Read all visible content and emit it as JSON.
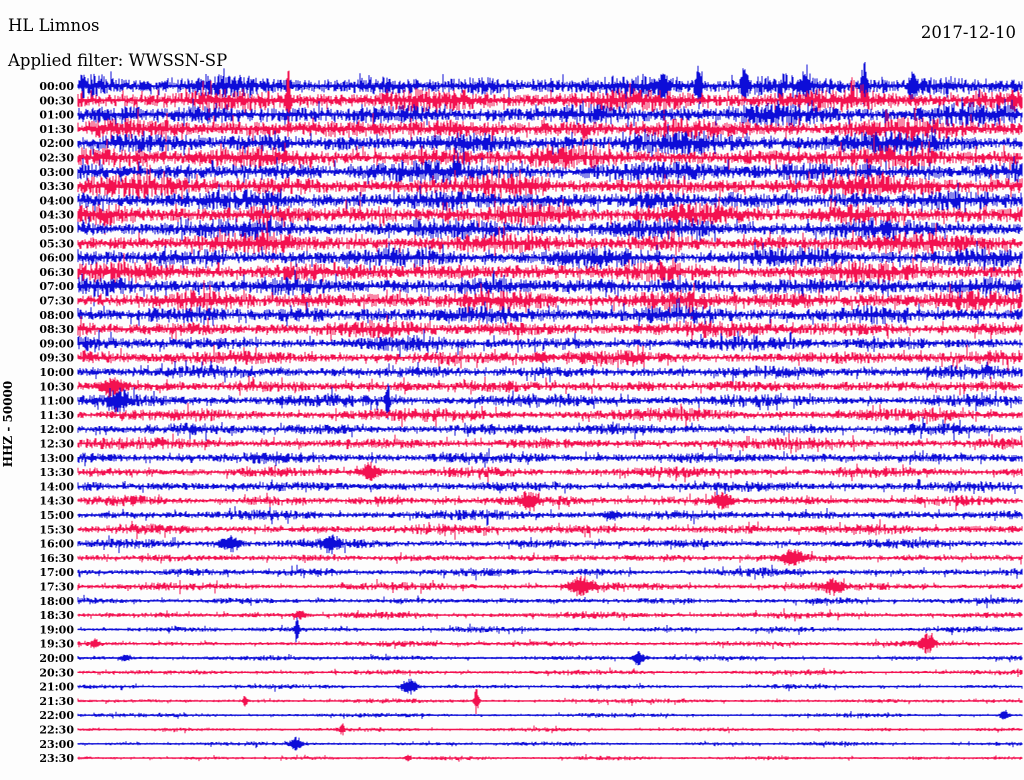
{
  "header": {
    "station": "HL Limnos",
    "date": "2017-12-10",
    "filter_label": "Applied filter: WWSSN-SP",
    "scale_label": "HHZ - 50000"
  },
  "colors": {
    "background": "#fdfdfd",
    "text": "#000000",
    "trace_blue": "#0d0dd8",
    "trace_red": "#f31150"
  },
  "chart_data": {
    "type": "helicorder-seismogram",
    "title": "HL Limnos",
    "date": "2017-12-10",
    "filter": "WWSSN-SP",
    "channel": "HHZ",
    "scale": 50000,
    "minutes_per_row": 30,
    "x_range_minutes": [
      0,
      30
    ],
    "legend_position": "none",
    "grid": false,
    "row_color_cycle": [
      "blue",
      "red"
    ],
    "rows": [
      {
        "time": "00:00",
        "color": "blue",
        "amp": 13,
        "events": [
          [
            0.62,
            14,
            3
          ],
          [
            0.658,
            26,
            2
          ],
          [
            0.706,
            22,
            2
          ],
          [
            0.77,
            10,
            3
          ],
          [
            0.833,
            26,
            2
          ],
          [
            0.885,
            12,
            3
          ]
        ]
      },
      {
        "time": "00:30",
        "color": "red",
        "amp": 13,
        "events": [
          [
            0.223,
            40,
            1.2
          ]
        ]
      },
      {
        "time": "01:00",
        "color": "blue",
        "amp": 13,
        "events": []
      },
      {
        "time": "01:30",
        "color": "red",
        "amp": 13,
        "events": []
      },
      {
        "time": "02:00",
        "color": "blue",
        "amp": 13,
        "events": []
      },
      {
        "time": "02:30",
        "color": "red",
        "amp": 13,
        "events": []
      },
      {
        "time": "03:00",
        "color": "blue",
        "amp": 13,
        "events": []
      },
      {
        "time": "03:30",
        "color": "red",
        "amp": 13,
        "events": []
      },
      {
        "time": "04:00",
        "color": "blue",
        "amp": 13,
        "events": []
      },
      {
        "time": "04:30",
        "color": "red",
        "amp": 13,
        "events": []
      },
      {
        "time": "05:00",
        "color": "blue",
        "amp": 12,
        "events": []
      },
      {
        "time": "05:30",
        "color": "red",
        "amp": 12,
        "events": []
      },
      {
        "time": "06:00",
        "color": "blue",
        "amp": 12,
        "events": []
      },
      {
        "time": "06:30",
        "color": "red",
        "amp": 12,
        "events": []
      },
      {
        "time": "07:00",
        "color": "blue",
        "amp": 12,
        "events": []
      },
      {
        "time": "07:30",
        "color": "red",
        "amp": 12,
        "events": []
      },
      {
        "time": "08:00",
        "color": "blue",
        "amp": 11,
        "events": []
      },
      {
        "time": "08:30",
        "color": "red",
        "amp": 10,
        "events": []
      },
      {
        "time": "09:00",
        "color": "blue",
        "amp": 9,
        "events": []
      },
      {
        "time": "09:30",
        "color": "red",
        "amp": 8.5,
        "events": [
          [
            0.49,
            4,
            5
          ]
        ]
      },
      {
        "time": "10:00",
        "color": "blue",
        "amp": 8,
        "events": []
      },
      {
        "time": "10:30",
        "color": "red",
        "amp": 8,
        "events": [
          [
            0.036,
            8,
            7
          ]
        ]
      },
      {
        "time": "11:00",
        "color": "blue",
        "amp": 7.5,
        "events": [
          [
            0.044,
            8,
            6
          ],
          [
            0.328,
            22,
            1.3
          ]
        ]
      },
      {
        "time": "11:30",
        "color": "red",
        "amp": 7.5,
        "events": []
      },
      {
        "time": "12:00",
        "color": "blue",
        "amp": 7,
        "events": []
      },
      {
        "time": "12:30",
        "color": "red",
        "amp": 7,
        "events": []
      },
      {
        "time": "13:00",
        "color": "blue",
        "amp": 7,
        "events": []
      },
      {
        "time": "13:30",
        "color": "red",
        "amp": 6.5,
        "events": [
          [
            0.309,
            8,
            6
          ]
        ]
      },
      {
        "time": "14:00",
        "color": "blue",
        "amp": 6.5,
        "events": []
      },
      {
        "time": "14:30",
        "color": "red",
        "amp": 6,
        "events": [
          [
            0.478,
            7,
            6
          ],
          [
            0.684,
            6,
            6
          ]
        ]
      },
      {
        "time": "15:00",
        "color": "blue",
        "amp": 6,
        "events": [
          [
            0.566,
            4,
            6
          ]
        ]
      },
      {
        "time": "15:30",
        "color": "red",
        "amp": 6,
        "events": []
      },
      {
        "time": "16:00",
        "color": "blue",
        "amp": 5.5,
        "events": [
          [
            0.161,
            8,
            7
          ],
          [
            0.267,
            7,
            5
          ]
        ]
      },
      {
        "time": "16:30",
        "color": "red",
        "amp": 5,
        "events": [
          [
            0.757,
            8,
            7
          ]
        ]
      },
      {
        "time": "17:00",
        "color": "blue",
        "amp": 5,
        "events": []
      },
      {
        "time": "17:30",
        "color": "red",
        "amp": 4.5,
        "events": [
          [
            0.533,
            9,
            8
          ],
          [
            0.8,
            7,
            6
          ]
        ]
      },
      {
        "time": "18:00",
        "color": "blue",
        "amp": 4,
        "events": []
      },
      {
        "time": "18:30",
        "color": "red",
        "amp": 4,
        "events": [
          [
            0.235,
            4,
            4
          ]
        ]
      },
      {
        "time": "19:00",
        "color": "blue",
        "amp": 3.5,
        "events": [
          [
            0.232,
            15,
            1.3
          ]
        ]
      },
      {
        "time": "19:30",
        "color": "red",
        "amp": 3.5,
        "events": [
          [
            0.018,
            5,
            3
          ],
          [
            0.9,
            10,
            5
          ]
        ]
      },
      {
        "time": "20:00",
        "color": "blue",
        "amp": 3,
        "events": [
          [
            0.05,
            3,
            4
          ],
          [
            0.594,
            7,
            4
          ]
        ]
      },
      {
        "time": "20:30",
        "color": "red",
        "amp": 3,
        "events": []
      },
      {
        "time": "21:00",
        "color": "blue",
        "amp": 2.8,
        "events": [
          [
            0.351,
            9,
            5
          ]
        ]
      },
      {
        "time": "21:30",
        "color": "red",
        "amp": 2.8,
        "events": [
          [
            0.177,
            7,
            1.5
          ],
          [
            0.422,
            14,
            1.5
          ]
        ]
      },
      {
        "time": "22:00",
        "color": "blue",
        "amp": 2.5,
        "events": [
          [
            0.982,
            5,
            3
          ]
        ]
      },
      {
        "time": "22:30",
        "color": "red",
        "amp": 2.5,
        "events": [
          [
            0.28,
            6,
            1.5
          ]
        ]
      },
      {
        "time": "23:00",
        "color": "blue",
        "amp": 2.5,
        "events": [
          [
            0.231,
            7,
            4
          ]
        ]
      },
      {
        "time": "23:30",
        "color": "red",
        "amp": 2.5,
        "events": [
          [
            0.35,
            4,
            2
          ]
        ]
      }
    ]
  }
}
